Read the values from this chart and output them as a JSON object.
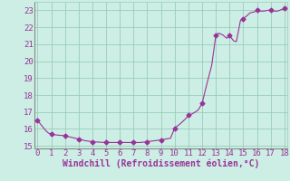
{
  "x": [
    0,
    0.3,
    0.6,
    0.8,
    1.0,
    1.3,
    1.7,
    2.0,
    2.5,
    3.0,
    3.5,
    4.0,
    4.5,
    5.0,
    5.5,
    6.0,
    6.5,
    7.0,
    7.5,
    8.0,
    8.5,
    9.0,
    9.3,
    9.7,
    10.0,
    10.4,
    10.8,
    11.0,
    11.3,
    11.7,
    12.0,
    12.3,
    12.7,
    13.0,
    13.2,
    13.5,
    13.8,
    14.0,
    14.3,
    14.5,
    14.8,
    15.0,
    15.3,
    15.5,
    15.8,
    16.0,
    16.3,
    16.5,
    16.8,
    17.0,
    17.3,
    17.5,
    17.8,
    18.0
  ],
  "y": [
    16.5,
    16.2,
    15.9,
    15.75,
    15.7,
    15.65,
    15.62,
    15.6,
    15.5,
    15.4,
    15.3,
    15.25,
    15.22,
    15.2,
    15.2,
    15.2,
    15.2,
    15.2,
    15.2,
    15.25,
    15.3,
    15.35,
    15.4,
    15.45,
    16.05,
    16.3,
    16.6,
    16.8,
    16.9,
    17.1,
    17.5,
    18.5,
    19.75,
    21.5,
    21.65,
    21.55,
    21.35,
    21.5,
    21.2,
    21.15,
    22.4,
    22.5,
    22.7,
    22.85,
    22.9,
    23.0,
    22.95,
    22.95,
    23.0,
    23.0,
    22.95,
    22.95,
    23.05,
    23.1
  ],
  "marker_x": [
    0,
    1,
    2,
    3,
    4,
    5,
    6,
    7,
    8,
    9,
    10,
    11,
    12,
    13,
    14,
    15,
    16,
    17,
    18
  ],
  "marker_y": [
    16.5,
    15.7,
    15.6,
    15.4,
    15.25,
    15.2,
    15.2,
    15.2,
    15.25,
    15.35,
    16.05,
    16.8,
    17.5,
    21.5,
    21.5,
    22.5,
    23.0,
    23.0,
    23.1
  ],
  "line_color": "#993399",
  "marker_color": "#993399",
  "bg_color": "#cceee4",
  "grid_color": "#99ccbb",
  "xlabel": "Windchill (Refroidissement éolien,°C)",
  "xlim": [
    -0.2,
    18.2
  ],
  "ylim": [
    14.85,
    23.5
  ],
  "xticks": [
    0,
    1,
    2,
    3,
    4,
    5,
    6,
    7,
    8,
    9,
    10,
    11,
    12,
    13,
    14,
    15,
    16,
    17,
    18
  ],
  "yticks": [
    15,
    16,
    17,
    18,
    19,
    20,
    21,
    22,
    23
  ],
  "tick_color": "#993399",
  "tick_fontsize": 6.5,
  "xlabel_fontsize": 7,
  "marker_size": 2.5,
  "linewidth": 0.8
}
